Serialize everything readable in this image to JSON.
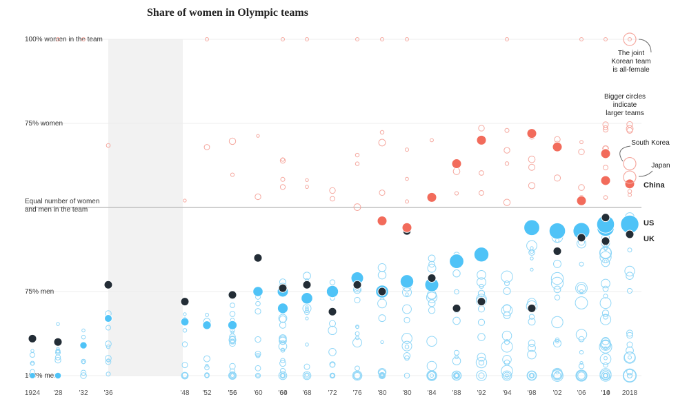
{
  "chart_data": {
    "type": "scatter",
    "title": "Share of women in Olympic teams",
    "y_axis": {
      "ticks": [
        {
          "value": 1.0,
          "label": "100% women in the team"
        },
        {
          "value": 0.75,
          "label": "75% women"
        },
        {
          "value": 0.5,
          "label_lines": [
            "Equal number of women",
            "and men in the team"
          ]
        },
        {
          "value": 0.25,
          "label": "75% men"
        },
        {
          "value": 0.0,
          "label": "100% men"
        }
      ],
      "ylim": [
        0,
        1
      ]
    },
    "x_axis": {
      "games": [
        "1924",
        "'28",
        "'32",
        "'36",
        "'48",
        "'52",
        "'56",
        "'56",
        "'60",
        "'60",
        "'64",
        "'68",
        "'72",
        "'76",
        "'80",
        "'80",
        "'84",
        "'88",
        "'92",
        "'94",
        "'98",
        "'02",
        "'06",
        "'10",
        "'14",
        "2018"
      ],
      "no_games_between": [
        "'36",
        "'48"
      ]
    },
    "highlight_colors": {
      "US": "#4fc3f7",
      "UK": "#232d36",
      "China": "#f26b5b",
      "Japan": "#f5a89f",
      "South Korea": "#f5a89f",
      "other_men_majority": "#8fd6f7",
      "other_women_majority": "#f5a89f"
    },
    "series": [
      {
        "name": "US",
        "values": [
          [
            0,
            0.0
          ],
          [
            1,
            0.0
          ],
          [
            2,
            0.09
          ],
          [
            3,
            0.17
          ],
          [
            4,
            0.16
          ],
          [
            5,
            0.15
          ],
          [
            6,
            0.15
          ],
          [
            7,
            0.24
          ],
          [
            8,
            0.25
          ],
          [
            9,
            0.2
          ],
          [
            10,
            0.25
          ],
          [
            11,
            0.23
          ],
          [
            12,
            0.25
          ],
          [
            13,
            0.29
          ],
          [
            14,
            0.25
          ],
          [
            15,
            0.28
          ],
          [
            16,
            0.27
          ],
          [
            17,
            0.34
          ],
          [
            18,
            0.36
          ],
          [
            20,
            0.44
          ],
          [
            21,
            0.43
          ],
          [
            22,
            0.43
          ],
          [
            23,
            0.44
          ],
          [
            24,
            0.45
          ],
          [
            25,
            0.45
          ]
        ]
      },
      {
        "name": "UK",
        "values": [
          [
            0,
            0.11
          ],
          [
            1,
            0.1
          ],
          [
            3,
            0.27
          ],
          [
            4,
            0.22
          ],
          [
            6,
            0.24
          ],
          [
            8,
            0.35
          ],
          [
            10,
            0.26
          ],
          [
            11,
            0.27
          ],
          [
            12,
            0.19
          ],
          [
            13,
            0.27
          ],
          [
            14,
            0.25
          ],
          [
            15,
            0.43
          ],
          [
            16,
            0.29
          ],
          [
            17,
            0.2
          ],
          [
            18,
            0.22
          ],
          [
            20,
            0.2
          ],
          [
            21,
            0.37
          ],
          [
            22,
            0.41
          ],
          [
            23,
            0.47
          ],
          [
            24,
            0.4
          ],
          [
            25,
            0.42
          ]
        ]
      },
      {
        "name": "China",
        "values": [
          [
            14,
            0.46
          ],
          [
            15,
            0.44
          ],
          [
            16,
            0.53
          ],
          [
            17,
            0.63
          ],
          [
            18,
            0.7
          ],
          [
            20,
            0.72
          ],
          [
            21,
            0.68
          ],
          [
            22,
            0.52
          ],
          [
            23,
            0.66
          ],
          [
            24,
            0.58
          ],
          [
            25,
            0.57
          ]
        ]
      },
      {
        "name": "Japan",
        "values": [
          [
            25,
            0.59
          ]
        ]
      },
      {
        "name": "South Korea",
        "values": [
          [
            25,
            0.63
          ],
          [
            25,
            1.0
          ]
        ]
      }
    ],
    "annotations": [
      {
        "text_lines": [
          "The joint",
          "Korean team",
          "is all-female"
        ]
      },
      {
        "text_lines": [
          "Bigger circles",
          "indicate",
          "larger teams"
        ]
      },
      {
        "text_lines": [
          "South Korea"
        ]
      },
      {
        "text_lines": [
          "Japan"
        ]
      },
      {
        "text_lines": [
          "China"
        ]
      },
      {
        "text_lines": [
          "US"
        ]
      },
      {
        "text_lines": [
          "UK"
        ]
      }
    ]
  }
}
